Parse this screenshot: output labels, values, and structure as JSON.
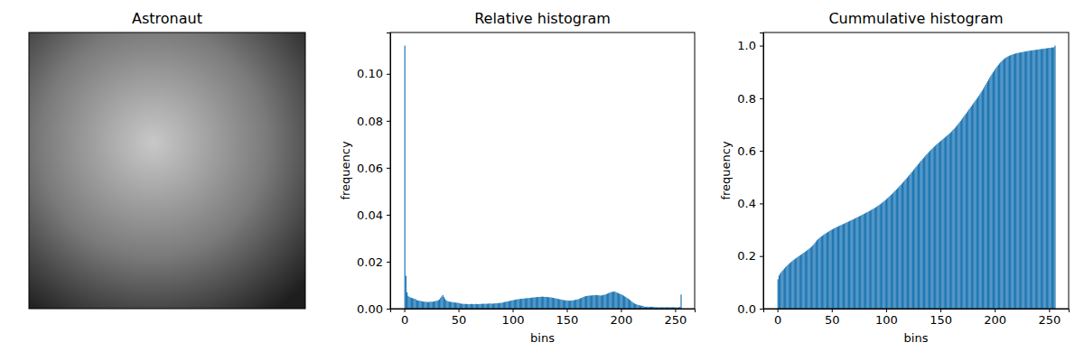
{
  "chart_data": [
    {
      "type": "image",
      "title": "Astronaut",
      "tick_labels": false
    },
    {
      "type": "histogram",
      "title": "Relative histogram",
      "xlabel": "bins",
      "ylabel": "frequency",
      "color": "#1f77b4",
      "grid": false,
      "xlim": [
        -13,
        268
      ],
      "ylim": [
        0,
        0.1176
      ],
      "xticks": [
        0,
        50,
        100,
        150,
        200,
        250
      ],
      "yticks": [
        {
          "value": 0,
          "label": "0.00"
        },
        {
          "value": 0.02,
          "label": "0.02"
        },
        {
          "value": 0.04,
          "label": "0.04"
        },
        {
          "value": 0.06,
          "label": "0.06"
        },
        {
          "value": 0.08,
          "label": "0.08"
        },
        {
          "value": 0.1,
          "label": "0.10"
        }
      ],
      "bins": [
        0,
        1,
        2,
        3,
        4,
        5,
        6,
        7,
        8,
        9,
        10,
        11,
        12,
        13,
        14,
        15,
        16,
        17,
        18,
        19,
        20,
        21,
        22,
        23,
        24,
        25,
        26,
        27,
        28,
        29,
        30,
        31,
        32,
        33,
        34,
        35,
        36,
        37,
        38,
        39,
        40,
        41,
        42,
        43,
        44,
        45,
        46,
        47,
        48,
        49,
        50,
        51,
        52,
        53,
        54,
        55,
        56,
        57,
        58,
        59,
        60,
        61,
        62,
        63,
        64,
        65,
        66,
        67,
        68,
        69,
        70,
        71,
        72,
        73,
        74,
        75,
        76,
        77,
        78,
        79,
        80,
        81,
        82,
        83,
        84,
        85,
        86,
        87,
        88,
        89,
        90,
        91,
        92,
        93,
        94,
        95,
        96,
        97,
        98,
        99,
        100,
        101,
        102,
        103,
        104,
        105,
        106,
        107,
        108,
        109,
        110,
        111,
        112,
        113,
        114,
        115,
        116,
        117,
        118,
        119,
        120,
        121,
        122,
        123,
        124,
        125,
        126,
        127,
        128,
        129,
        130,
        131,
        132,
        133,
        134,
        135,
        136,
        137,
        138,
        139,
        140,
        141,
        142,
        143,
        144,
        145,
        146,
        147,
        148,
        149,
        150,
        151,
        152,
        153,
        154,
        155,
        156,
        157,
        158,
        159,
        160,
        161,
        162,
        163,
        164,
        165,
        166,
        167,
        168,
        169,
        170,
        171,
        172,
        173,
        174,
        175,
        176,
        177,
        178,
        179,
        180,
        181,
        182,
        183,
        184,
        185,
        186,
        187,
        188,
        189,
        190,
        191,
        192,
        193,
        194,
        195,
        196,
        197,
        198,
        199,
        200,
        201,
        202,
        203,
        204,
        205,
        206,
        207,
        208,
        209,
        210,
        211,
        212,
        213,
        214,
        215,
        216,
        217,
        218,
        219,
        220,
        221,
        222,
        223,
        224,
        225,
        226,
        227,
        228,
        229,
        230,
        231,
        232,
        233,
        234,
        235,
        236,
        237,
        238,
        239,
        240,
        241,
        242,
        243,
        244,
        245,
        246,
        247,
        248,
        249,
        250,
        251,
        252,
        253,
        254,
        255,
        256
      ],
      "values": [
        0.112,
        0.014,
        0.007,
        0.0055,
        0.005,
        0.0048,
        0.0046,
        0.0045,
        0.0043,
        0.0042,
        0.004,
        0.0036,
        0.0035,
        0.0034,
        0.0033,
        0.0032,
        0.0031,
        0.003,
        0.003,
        0.0029,
        0.0029,
        0.0028,
        0.0028,
        0.0029,
        0.003,
        0.0029,
        0.003,
        0.0031,
        0.0032,
        0.0033,
        0.0034,
        0.0036,
        0.004,
        0.0046,
        0.0052,
        0.0058,
        0.005,
        0.0042,
        0.0036,
        0.0033,
        0.0031,
        0.003,
        0.0029,
        0.0028,
        0.0028,
        0.0027,
        0.0026,
        0.0026,
        0.0025,
        0.0025,
        0.0024,
        0.0022,
        0.0021,
        0.0021,
        0.002,
        0.002,
        0.002,
        0.002,
        0.0019,
        0.0019,
        0.0019,
        0.002,
        0.002,
        0.0019,
        0.0019,
        0.002,
        0.002,
        0.0019,
        0.0019,
        0.002,
        0.002,
        0.002,
        0.0021,
        0.0021,
        0.002,
        0.0021,
        0.0021,
        0.0021,
        0.0022,
        0.0022,
        0.0021,
        0.0021,
        0.0022,
        0.0022,
        0.0023,
        0.0023,
        0.0023,
        0.0024,
        0.0024,
        0.0025,
        0.0025,
        0.0027,
        0.0028,
        0.0029,
        0.003,
        0.0031,
        0.0032,
        0.0033,
        0.0034,
        0.0035,
        0.0036,
        0.0037,
        0.0038,
        0.0039,
        0.004,
        0.004,
        0.0041,
        0.0042,
        0.0042,
        0.0043,
        0.0043,
        0.0044,
        0.0044,
        0.0045,
        0.0045,
        0.0046,
        0.0046,
        0.0047,
        0.0047,
        0.0048,
        0.0048,
        0.0049,
        0.0049,
        0.005,
        0.005,
        0.005,
        0.0051,
        0.0051,
        0.0051,
        0.005,
        0.005,
        0.005,
        0.0049,
        0.0049,
        0.0048,
        0.0048,
        0.0047,
        0.0046,
        0.0045,
        0.0044,
        0.0043,
        0.0042,
        0.0041,
        0.004,
        0.0039,
        0.0038,
        0.0037,
        0.0036,
        0.0036,
        0.0035,
        0.0035,
        0.0034,
        0.0034,
        0.0034,
        0.0035,
        0.0035,
        0.0036,
        0.0037,
        0.0038,
        0.0039,
        0.004,
        0.0042,
        0.0044,
        0.0046,
        0.0048,
        0.005,
        0.0052,
        0.0053,
        0.0054,
        0.0055,
        0.0055,
        0.0056,
        0.0056,
        0.0057,
        0.0057,
        0.0057,
        0.0058,
        0.0058,
        0.0057,
        0.0057,
        0.0056,
        0.0056,
        0.0057,
        0.0058,
        0.0059,
        0.006,
        0.0062,
        0.0064,
        0.0066,
        0.0068,
        0.007,
        0.0071,
        0.0072,
        0.0073,
        0.0072,
        0.007,
        0.0068,
        0.0066,
        0.0064,
        0.0062,
        0.006,
        0.0058,
        0.0055,
        0.0052,
        0.0049,
        0.0046,
        0.0043,
        0.004,
        0.0036,
        0.0032,
        0.0028,
        0.0025,
        0.0022,
        0.002,
        0.0018,
        0.0016,
        0.0015,
        0.0014,
        0.0013,
        0.0012,
        0.0012,
        0.0008,
        0.0008,
        0.0008,
        0.0008,
        0.0008,
        0.0008,
        0.0008,
        0.0008,
        0.0008,
        0.0008,
        0.0006,
        0.0006,
        0.0006,
        0.0006,
        0.0006,
        0.0006,
        0.0006,
        0.0006,
        0.0006,
        0.0006,
        0.0006,
        0.0006,
        0.0006,
        0.0006,
        0.0006,
        0.0006,
        0.0006,
        0.0006,
        0.0006,
        0.0006,
        0.0005,
        0.0005,
        0.0006,
        0.0008,
        0.006
      ]
    },
    {
      "type": "histogram",
      "title": "Cummulative histogram",
      "xlabel": "bins",
      "ylabel": "frequency",
      "color": "#1f77b4",
      "grid": false,
      "xlim": [
        -13,
        268
      ],
      "ylim": [
        0,
        1.05
      ],
      "xticks": [
        0,
        50,
        100,
        150,
        200,
        250
      ],
      "yticks": [
        {
          "value": 0,
          "label": "0.0"
        },
        {
          "value": 0.2,
          "label": "0.2"
        },
        {
          "value": 0.4,
          "label": "0.4"
        },
        {
          "value": 0.6,
          "label": "0.6"
        },
        {
          "value": 0.8,
          "label": "0.8"
        },
        {
          "value": 1,
          "label": "1.0"
        }
      ],
      "bins": [
        0,
        1,
        2,
        3,
        4,
        5,
        6,
        7,
        8,
        9,
        10,
        11,
        12,
        13,
        14,
        15,
        16,
        17,
        18,
        19,
        20,
        21,
        22,
        23,
        24,
        25,
        26,
        27,
        28,
        29,
        30,
        31,
        32,
        33,
        34,
        35,
        36,
        37,
        38,
        39,
        40,
        41,
        42,
        43,
        44,
        45,
        46,
        47,
        48,
        49,
        50,
        51,
        52,
        53,
        54,
        55,
        56,
        57,
        58,
        59,
        60,
        61,
        62,
        63,
        64,
        65,
        66,
        67,
        68,
        69,
        70,
        71,
        72,
        73,
        74,
        75,
        76,
        77,
        78,
        79,
        80,
        81,
        82,
        83,
        84,
        85,
        86,
        87,
        88,
        89,
        90,
        91,
        92,
        93,
        94,
        95,
        96,
        97,
        98,
        99,
        100,
        101,
        102,
        103,
        104,
        105,
        106,
        107,
        108,
        109,
        110,
        111,
        112,
        113,
        114,
        115,
        116,
        117,
        118,
        119,
        120,
        121,
        122,
        123,
        124,
        125,
        126,
        127,
        128,
        129,
        130,
        131,
        132,
        133,
        134,
        135,
        136,
        137,
        138,
        139,
        140,
        141,
        142,
        143,
        144,
        145,
        146,
        147,
        148,
        149,
        150,
        151,
        152,
        153,
        154,
        155,
        156,
        157,
        158,
        159,
        160,
        161,
        162,
        163,
        164,
        165,
        166,
        167,
        168,
        169,
        170,
        171,
        172,
        173,
        174,
        175,
        176,
        177,
        178,
        179,
        180,
        181,
        182,
        183,
        184,
        185,
        186,
        187,
        188,
        189,
        190,
        191,
        192,
        193,
        194,
        195,
        196,
        197,
        198,
        199,
        200,
        201,
        202,
        203,
        204,
        205,
        206,
        207,
        208,
        209,
        210,
        211,
        212,
        213,
        214,
        215,
        216,
        217,
        218,
        219,
        220,
        221,
        222,
        223,
        224,
        225,
        226,
        227,
        228,
        229,
        230,
        231,
        232,
        233,
        234,
        235,
        236,
        237,
        238,
        239,
        240,
        241,
        242,
        243,
        244,
        245,
        246,
        247,
        248,
        249,
        250,
        251,
        252,
        253,
        254,
        255,
        256
      ],
      "values": [
        0.112,
        0.126,
        0.133,
        0.1385,
        0.1435,
        0.1483,
        0.1529,
        0.1574,
        0.1617,
        0.1659,
        0.1699,
        0.1735,
        0.177,
        0.1804,
        0.1837,
        0.1869,
        0.19,
        0.193,
        0.196,
        0.1989,
        0.2018,
        0.2046,
        0.2074,
        0.2103,
        0.2133,
        0.2162,
        0.2192,
        0.2223,
        0.2255,
        0.2288,
        0.2322,
        0.2358,
        0.2398,
        0.2444,
        0.2496,
        0.2554,
        0.2604,
        0.2646,
        0.2682,
        0.2715,
        0.2746,
        0.2776,
        0.2805,
        0.2833,
        0.2861,
        0.2888,
        0.2914,
        0.294,
        0.2965,
        0.299,
        0.3014,
        0.3036,
        0.3057,
        0.3078,
        0.3098,
        0.3118,
        0.3138,
        0.3158,
        0.3177,
        0.3196,
        0.3215,
        0.3235,
        0.3255,
        0.3274,
        0.3293,
        0.3313,
        0.3333,
        0.3352,
        0.3371,
        0.3391,
        0.3411,
        0.3431,
        0.3452,
        0.3473,
        0.3493,
        0.3514,
        0.3535,
        0.3556,
        0.3578,
        0.36,
        0.3621,
        0.3642,
        0.3664,
        0.3686,
        0.3709,
        0.3732,
        0.3755,
        0.3779,
        0.3803,
        0.3828,
        0.3853,
        0.388,
        0.3908,
        0.3937,
        0.3967,
        0.3998,
        0.403,
        0.4063,
        0.4097,
        0.4132,
        0.4168,
        0.4205,
        0.4243,
        0.4282,
        0.4322,
        0.4362,
        0.4403,
        0.4445,
        0.4487,
        0.453,
        0.4573,
        0.4617,
        0.4661,
        0.4706,
        0.4751,
        0.4797,
        0.4843,
        0.489,
        0.4937,
        0.4985,
        0.5033,
        0.5082,
        0.5131,
        0.5181,
        0.5231,
        0.5281,
        0.5332,
        0.5383,
        0.5434,
        0.5484,
        0.5534,
        0.5584,
        0.5633,
        0.5682,
        0.573,
        0.5778,
        0.5825,
        0.5871,
        0.5916,
        0.596,
        0.6003,
        0.6045,
        0.6086,
        0.6126,
        0.6165,
        0.6203,
        0.624,
        0.6276,
        0.6312,
        0.6347,
        0.6382,
        0.6416,
        0.645,
        0.6484,
        0.6519,
        0.6554,
        0.659,
        0.6627,
        0.6665,
        0.6704,
        0.6744,
        0.6786,
        0.683,
        0.6876,
        0.6924,
        0.6974,
        0.7026,
        0.7079,
        0.7133,
        0.7188,
        0.7243,
        0.7299,
        0.7355,
        0.7412,
        0.7469,
        0.7526,
        0.7584,
        0.7642,
        0.7699,
        0.7756,
        0.7812,
        0.7868,
        0.7925,
        0.7983,
        0.8042,
        0.8102,
        0.8164,
        0.8228,
        0.8294,
        0.8362,
        0.8432,
        0.8503,
        0.8575,
        0.8648,
        0.872,
        0.879,
        0.8858,
        0.8924,
        0.8988,
        0.905,
        0.911,
        0.9168,
        0.9223,
        0.9275,
        0.9324,
        0.937,
        0.9413,
        0.9453,
        0.9489,
        0.9521,
        0.9549,
        0.9574,
        0.9596,
        0.9616,
        0.9634,
        0.965,
        0.9665,
        0.9679,
        0.9692,
        0.9704,
        0.9716,
        0.9724,
        0.9732,
        0.974,
        0.9748,
        0.9756,
        0.9764,
        0.9772,
        0.978,
        0.9788,
        0.9796,
        0.9802,
        0.9808,
        0.9814,
        0.982,
        0.9826,
        0.9832,
        0.9838,
        0.9844,
        0.985,
        0.9856,
        0.9862,
        0.9868,
        0.9874,
        0.988,
        0.9886,
        0.9892,
        0.9898,
        0.9904,
        0.991,
        0.9916,
        0.9921,
        0.9926,
        0.9932,
        0.994,
        1.0
      ]
    }
  ]
}
